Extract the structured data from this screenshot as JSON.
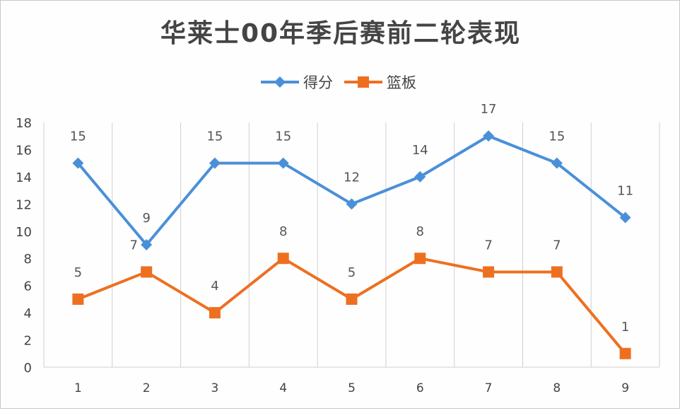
{
  "chart_data": {
    "type": "line",
    "title": "华莱士00年季后赛前二轮表现",
    "categories": [
      "1",
      "2",
      "3",
      "4",
      "5",
      "6",
      "7",
      "8",
      "9"
    ],
    "series": [
      {
        "name": "得分",
        "values": [
          15,
          9,
          15,
          15,
          12,
          14,
          17,
          15,
          11
        ],
        "color": "#4A90D9",
        "marker": "diamond"
      },
      {
        "name": "篮板",
        "values": [
          5,
          7,
          4,
          8,
          5,
          8,
          7,
          7,
          1
        ],
        "color": "#ED7020",
        "marker": "square"
      }
    ],
    "ylim": [
      0,
      18
    ],
    "yticks": [
      0,
      2,
      4,
      6,
      8,
      10,
      12,
      14,
      16,
      18
    ],
    "legend": "top",
    "grid": "vertical category separators",
    "data_labels": true
  }
}
